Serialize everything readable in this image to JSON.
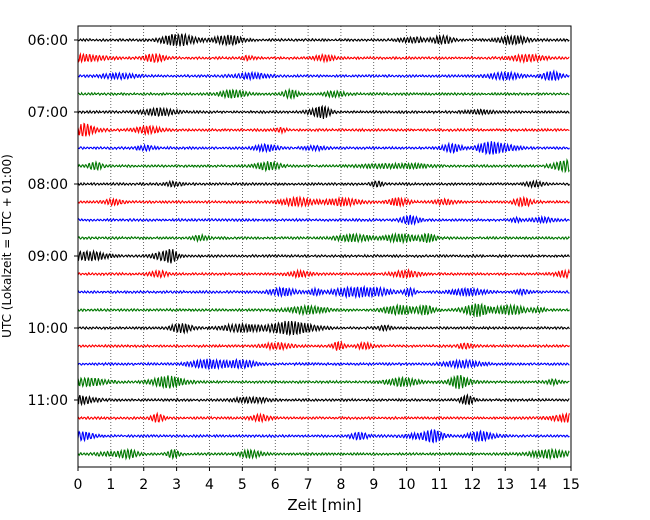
{
  "chart_data": {
    "type": "line",
    "title": "",
    "xlabel": "Zeit  [min]",
    "ylabel": "UTC (Lokalzeit = UTC + 01:00)",
    "xlim": [
      0,
      15
    ],
    "x_ticks": [
      "0",
      "1",
      "2",
      "3",
      "4",
      "5",
      "6",
      "7",
      "8",
      "9",
      "10",
      "11",
      "12",
      "13",
      "14",
      "15"
    ],
    "grid": "vertical dotted",
    "legend": "none",
    "row_interval_minutes": 15,
    "y_ticks": [
      "06:00",
      "07:00",
      "08:00",
      "09:00",
      "10:00",
      "11:00"
    ],
    "trace_colors": [
      "#000000",
      "#ff0000",
      "#0000ff",
      "#007700"
    ],
    "rows": [
      {
        "start": "06:00",
        "color": "#000000"
      },
      {
        "start": "06:15",
        "color": "#ff0000"
      },
      {
        "start": "06:30",
        "color": "#0000ff"
      },
      {
        "start": "06:45",
        "color": "#007700"
      },
      {
        "start": "07:00",
        "color": "#000000"
      },
      {
        "start": "07:15",
        "color": "#ff0000"
      },
      {
        "start": "07:30",
        "color": "#0000ff"
      },
      {
        "start": "07:45",
        "color": "#007700"
      },
      {
        "start": "08:00",
        "color": "#000000"
      },
      {
        "start": "08:15",
        "color": "#ff0000"
      },
      {
        "start": "08:30",
        "color": "#0000ff"
      },
      {
        "start": "08:45",
        "color": "#007700"
      },
      {
        "start": "09:00",
        "color": "#000000"
      },
      {
        "start": "09:15",
        "color": "#ff0000"
      },
      {
        "start": "09:30",
        "color": "#0000ff"
      },
      {
        "start": "09:45",
        "color": "#007700"
      },
      {
        "start": "10:00",
        "color": "#000000"
      },
      {
        "start": "10:15",
        "color": "#ff0000"
      },
      {
        "start": "10:30",
        "color": "#0000ff"
      },
      {
        "start": "10:45",
        "color": "#007700"
      },
      {
        "start": "11:00",
        "color": "#000000"
      },
      {
        "start": "11:15",
        "color": "#ff0000"
      },
      {
        "start": "11:30",
        "color": "#0000ff"
      },
      {
        "start": "11:45",
        "color": "#007700"
      }
    ]
  }
}
